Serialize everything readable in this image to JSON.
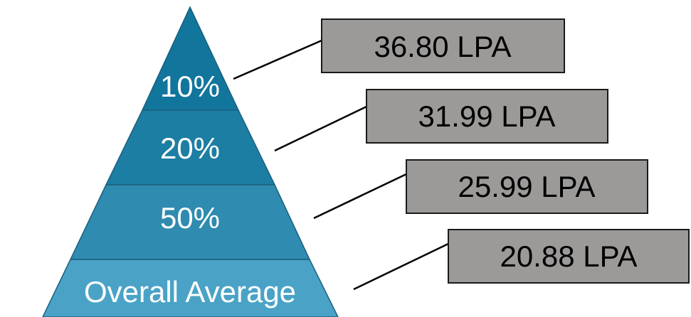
{
  "pyramid": {
    "tiers": [
      {
        "label": "10%",
        "value": "36.80 LPA",
        "color": "#12759c"
      },
      {
        "label": "20%",
        "value": "31.99 LPA",
        "color": "#1d7ea3"
      },
      {
        "label": "50%",
        "value": "25.99 LPA",
        "color": "#2f8bb0"
      },
      {
        "label": "Overall Average",
        "value": "20.88 LPA",
        "color": "#4aa3c6"
      }
    ],
    "box_color": "#9c9a99"
  }
}
